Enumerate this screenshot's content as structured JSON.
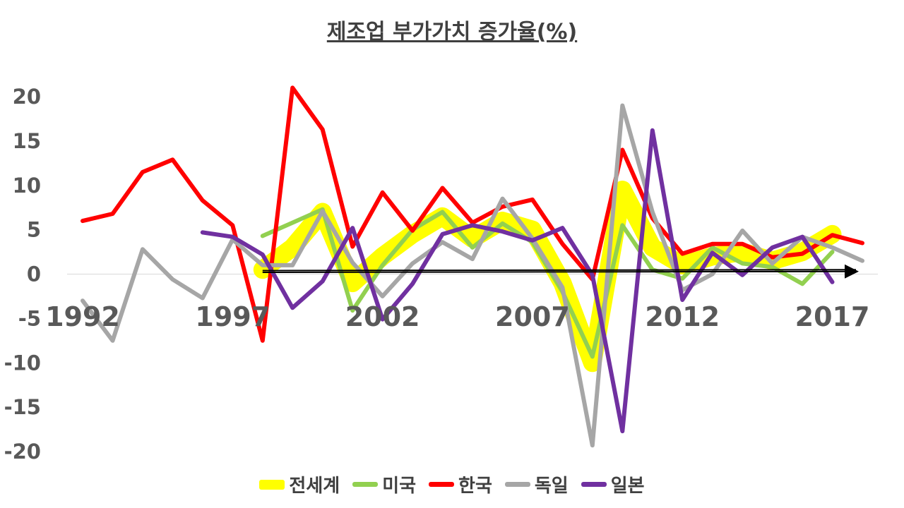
{
  "title": "제조업 부가가치 증가율(%)",
  "chart_data": {
    "type": "line",
    "title": "제조업 부가가치 증가율(%)",
    "xlabel": "",
    "ylabel": "",
    "ylim": [
      -20,
      20
    ],
    "yticks": [
      "20",
      "15",
      "10",
      "5",
      "0",
      "-5",
      "-10",
      "-15",
      "-20"
    ],
    "ytick_values": [
      20,
      15,
      10,
      5,
      0,
      -5,
      -10,
      -15,
      -20
    ],
    "xticks": [
      "1992",
      "1997",
      "2002",
      "2007",
      "2012",
      "2017"
    ],
    "xtick_values": [
      1992,
      1997,
      2002,
      2007,
      2012,
      2017
    ],
    "xlim": [
      1992,
      2018
    ],
    "grid": false,
    "legend": "bottom",
    "series": [
      {
        "name": "전세계",
        "color": "#FFFF00",
        "x": [
          1998,
          1999,
          2000,
          2001,
          2002,
          2003,
          2004,
          2005,
          2006,
          2007,
          2008,
          2009,
          2010,
          2011,
          2012,
          2013,
          2014,
          2015,
          2016,
          2017
        ],
        "values": [
          0.5,
          3,
          7,
          -1,
          2,
          4.5,
          6.5,
          4,
          6,
          5,
          -1,
          -10,
          9.5,
          3,
          1,
          2,
          2.5,
          1.5,
          2.5,
          4.5
        ]
      },
      {
        "name": "미국",
        "color": "#92D050",
        "x": [
          1998,
          1999,
          2000,
          2001,
          2002,
          2003,
          2004,
          2005,
          2006,
          2007,
          2008,
          2009,
          2010,
          2011,
          2012,
          2013,
          2014,
          2015,
          2016,
          2017
        ],
        "values": [
          4.3,
          5.8,
          7.3,
          -4.1,
          1,
          5,
          7,
          3,
          5.7,
          3.6,
          -2,
          -9.3,
          5.5,
          0.5,
          -0.5,
          3,
          1.2,
          0.8,
          -1.1,
          2.5
        ]
      },
      {
        "name": "한국",
        "color": "#FF0000",
        "x": [
          1992,
          1993,
          1994,
          1995,
          1996,
          1997,
          1998,
          1999,
          2000,
          2001,
          2002,
          2003,
          2004,
          2005,
          2006,
          2007,
          2008,
          2009,
          2010,
          2011,
          2012,
          2013,
          2014,
          2015,
          2016,
          2017,
          2018
        ],
        "values": [
          6,
          6.8,
          11.5,
          12.9,
          8.3,
          5.5,
          -7.5,
          21,
          16.3,
          3.1,
          9.2,
          4.9,
          9.7,
          5.8,
          7.6,
          8.4,
          3.4,
          -0.6,
          14,
          6.3,
          2.3,
          3.4,
          3.4,
          1.9,
          2.3,
          4.4,
          3.5
        ]
      },
      {
        "name": "독일",
        "color": "#A6A6A6",
        "x": [
          1992,
          1993,
          1994,
          1995,
          1996,
          1997,
          1998,
          1999,
          2000,
          2001,
          2002,
          2003,
          2004,
          2005,
          2006,
          2007,
          2008,
          2009,
          2010,
          2011,
          2012,
          2013,
          2014,
          2015,
          2016,
          2017,
          2018
        ],
        "values": [
          -3,
          -7.5,
          2.8,
          -0.6,
          -2.7,
          3.9,
          1,
          1,
          7.1,
          1.3,
          -2.5,
          1.2,
          3.6,
          1.7,
          8.5,
          4,
          -1.5,
          -19.3,
          19,
          7,
          -1.8,
          0,
          4.9,
          1.2,
          4.2,
          3,
          1.5
        ]
      },
      {
        "name": "일본",
        "color": "#7030A0",
        "x": [
          1996,
          1997,
          1998,
          1999,
          2000,
          2001,
          2002,
          2003,
          2004,
          2005,
          2006,
          2007,
          2008,
          2009,
          2010,
          2011,
          2012,
          2013,
          2014,
          2015,
          2016,
          2017
        ],
        "values": [
          4.7,
          4.2,
          2.2,
          -3.8,
          -0.8,
          5.2,
          -5.1,
          -1.1,
          4.5,
          5.5,
          4.8,
          3.8,
          5.2,
          -0.1,
          -17.7,
          16.2,
          -2.9,
          2.4,
          -0.1,
          3,
          4.2,
          -0.9
        ]
      }
    ]
  }
}
